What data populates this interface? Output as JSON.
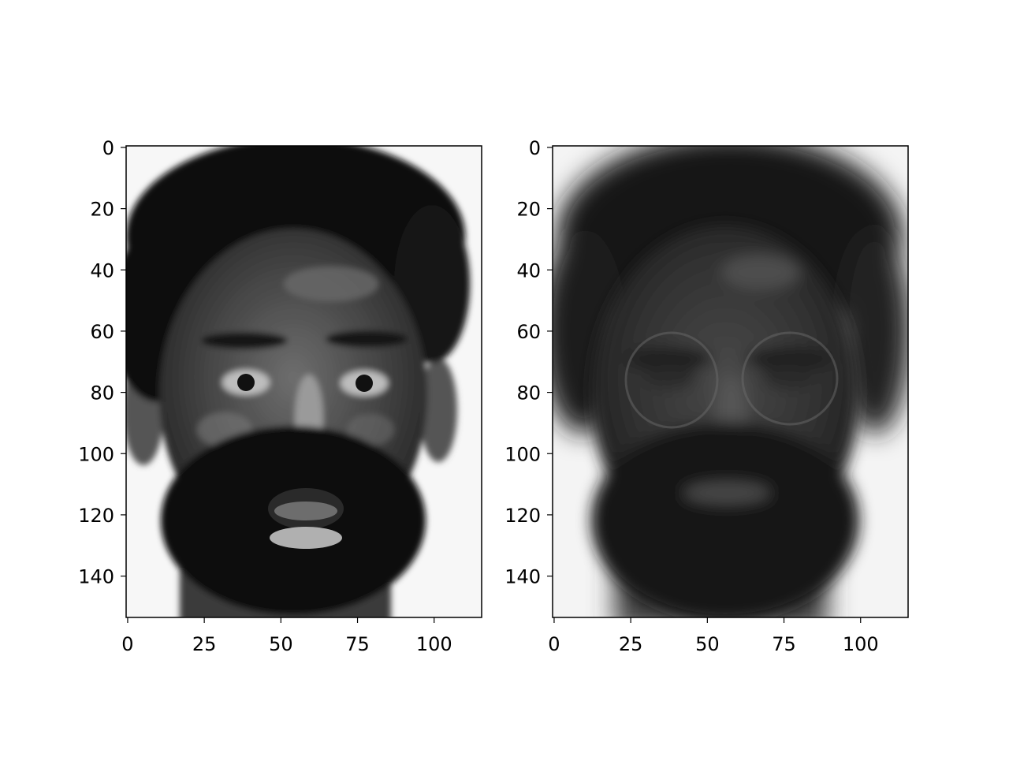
{
  "chart_data": [
    {
      "type": "image",
      "image_width": 116,
      "image_height": 154,
      "xlim": [
        -0.5,
        115.5
      ],
      "ylim": [
        153.5,
        -0.5
      ],
      "x_ticks": [
        0,
        25,
        50,
        75,
        100
      ],
      "y_ticks": [
        0,
        20,
        40,
        60,
        80,
        100,
        120,
        140
      ],
      "colormap": "gray",
      "content": "face photograph (sharp)"
    },
    {
      "type": "image",
      "image_width": 116,
      "image_height": 154,
      "xlim": [
        -0.5,
        115.5
      ],
      "ylim": [
        153.5,
        -0.5
      ],
      "x_ticks": [
        0,
        25,
        50,
        75,
        100
      ],
      "y_ticks": [
        0,
        20,
        40,
        60,
        80,
        100,
        120,
        140
      ],
      "colormap": "gray",
      "content": "face reconstruction (blurred)"
    }
  ]
}
